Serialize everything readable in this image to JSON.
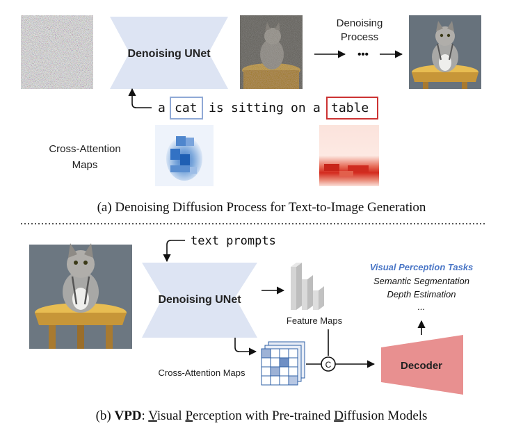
{
  "panel_a": {
    "unet_label": "Denoising UNet",
    "process_label_line1": "Denoising",
    "process_label_line2": "Process",
    "ellipsis": "•••",
    "prompt_words": [
      "a",
      "cat",
      "is",
      "sitting",
      "on",
      "a",
      "table"
    ],
    "highlighted_words": {
      "cat": "#8fa9d6",
      "table": "#cc3333"
    },
    "attention_label_line1": "Cross-Attention",
    "attention_label_line2": "Maps",
    "caption": "(a) Denoising Diffusion Process for Text-to-Image Generation"
  },
  "panel_b": {
    "text_prompts": "text prompts",
    "unet_label": "Denoising UNet",
    "feature_maps": "Feature Maps",
    "cross_attention_maps": "Cross-Attention Maps",
    "concat_symbol": "C",
    "decoder": "Decoder",
    "tasks_title": "Visual Perception Tasks",
    "tasks": [
      "Semantic Segmentation",
      "Depth Estimation",
      "..."
    ],
    "caption_prefix": "(b) ",
    "caption_bold": "VPD",
    "caption_parts": [
      {
        "text": ": ",
        "underline": false
      },
      {
        "text": "V",
        "underline": true
      },
      {
        "text": "isual ",
        "underline": false
      },
      {
        "text": "P",
        "underline": true
      },
      {
        "text": "erception with Pre-trained ",
        "underline": false
      },
      {
        "text": "D",
        "underline": true
      },
      {
        "text": "iffusion Models",
        "underline": false
      }
    ]
  },
  "colors": {
    "unet_fill": "#dde4f3",
    "decoder_fill": "#e89090",
    "attention_blue": "#2d6bbf",
    "attention_red": "#d42a1e",
    "tasks_title": "#4a76c6",
    "divider": "#555555"
  },
  "icons": [
    "noise-image",
    "noisy-cat-image",
    "clean-cat-image",
    "arrow-icon",
    "concat-icon",
    "feature-maps-icon",
    "attention-grid-icon"
  ]
}
